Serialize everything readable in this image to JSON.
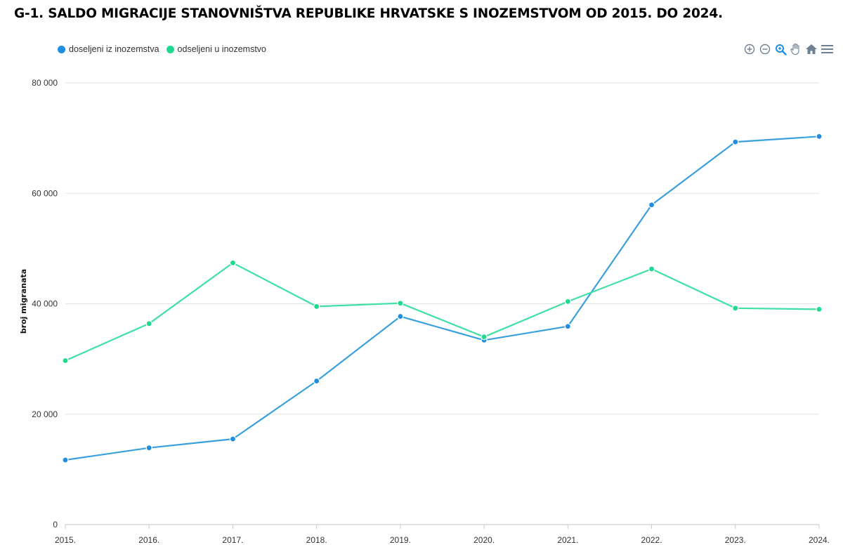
{
  "title": "G-1. SALDO MIGRACIJE STANOVNIŠTVA REPUBLIKE HRVATSKE S INOZEMSTVOM OD 2015. DO 2024.",
  "toolbar": {
    "icons": [
      "zoom-in-icon",
      "zoom-out-icon",
      "zoom-select-icon",
      "pan-hand-icon",
      "reset-home-icon",
      "menu-icon"
    ]
  },
  "chart_data": {
    "type": "line",
    "title": "G-1. SALDO MIGRACIJE STANOVNIŠTVA REPUBLIKE HRVATSKE S INOZEMSTVOM OD 2015. DO 2024.",
    "xlabel": "",
    "ylabel": "broj migranata",
    "categories": [
      "2015.",
      "2016.",
      "2017.",
      "2018.",
      "2019.",
      "2020.",
      "2021.",
      "2022.",
      "2023.",
      "2024."
    ],
    "ylim": [
      0,
      80000
    ],
    "yticks": [
      0,
      20000,
      40000,
      60000,
      80000
    ],
    "ytick_labels": [
      "0",
      "20 000",
      "40 000",
      "60 000",
      "80 000"
    ],
    "grid": true,
    "legend_position": "top-left",
    "series": [
      {
        "name": "doseljeni iz inozemstva",
        "color": "#1f8ee0",
        "values": [
          11700,
          13900,
          15500,
          26000,
          37700,
          33400,
          35900,
          57900,
          69300,
          70300
        ]
      },
      {
        "name": "odseljeni u inozemstvo",
        "color": "#1fd98f",
        "values": [
          29700,
          36400,
          47400,
          39500,
          40100,
          34000,
          40400,
          46300,
          39200,
          39000
        ]
      }
    ]
  }
}
